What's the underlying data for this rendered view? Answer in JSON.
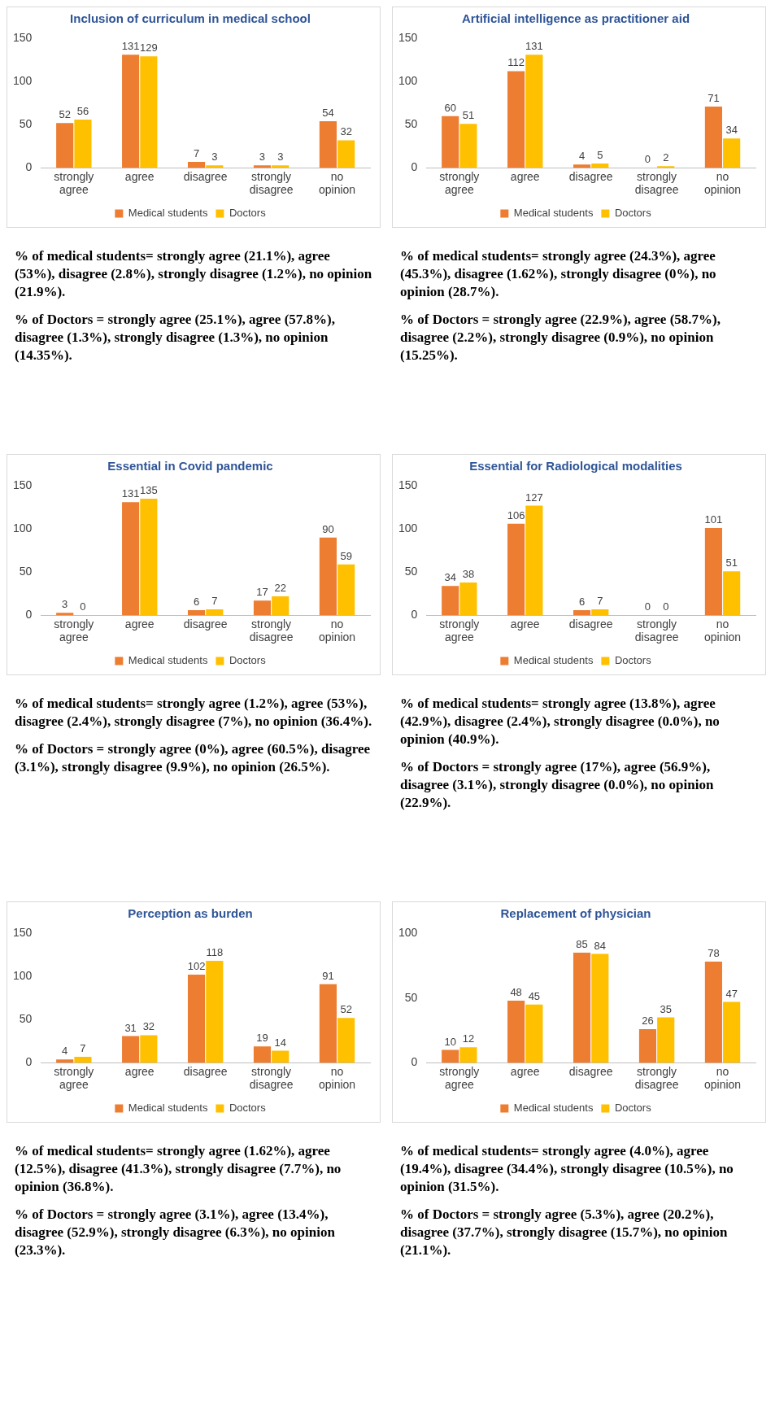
{
  "chart_data": [
    {
      "type": "bar",
      "title": "Inclusion of curriculum in medical school",
      "categories": [
        "strongly agree",
        "agree",
        "disagree",
        "strongly disagree",
        "no opinion"
      ],
      "series": [
        {
          "name": "Medical students",
          "color": "#ed7d31",
          "values": [
            52,
            131,
            7,
            3,
            54
          ]
        },
        {
          "name": "Doctors",
          "color": "#ffc000",
          "values": [
            56,
            129,
            3,
            3,
            32
          ]
        }
      ],
      "ylim": [
        0,
        150
      ],
      "yticks": [
        0,
        50,
        100,
        150
      ],
      "grid": false,
      "legend": "bottom",
      "data_labels": true,
      "annotations": [
        "% of medical students= strongly agree (21.1%), agree (53%), disagree (2.8%), strongly disagree (1.2%), no opinion (21.9%).",
        "% of Doctors = strongly agree (25.1%), agree (57.8%), disagree (1.3%), strongly disagree (1.3%), no opinion (14.35%)."
      ]
    },
    {
      "type": "bar",
      "title": "Artificial intelligence as practitioner aid",
      "categories": [
        "strongly agree",
        "agree",
        "disagree",
        "strongly disagree",
        "no opinion"
      ],
      "series": [
        {
          "name": "Medical students",
          "color": "#ed7d31",
          "values": [
            60,
            112,
            4,
            0,
            71
          ]
        },
        {
          "name": "Doctors",
          "color": "#ffc000",
          "values": [
            51,
            131,
            5,
            2,
            34
          ]
        }
      ],
      "ylim": [
        0,
        150
      ],
      "yticks": [
        0,
        50,
        100,
        150
      ],
      "grid": false,
      "legend": "bottom",
      "data_labels": true,
      "annotations": [
        "% of medical students= strongly agree (24.3%), agree (45.3%), disagree (1.62%), strongly disagree (0%), no opinion (28.7%).",
        "% of Doctors = strongly agree (22.9%), agree (58.7%), disagree (2.2%), strongly disagree (0.9%), no opinion (15.25%)."
      ]
    },
    {
      "type": "bar",
      "title": "Essential in Covid pandemic",
      "categories": [
        "strongly agree",
        "agree",
        "disagree",
        "strongly disagree",
        "no opinion"
      ],
      "series": [
        {
          "name": "Medical students",
          "color": "#ed7d31",
          "values": [
            3,
            131,
            6,
            17,
            90
          ]
        },
        {
          "name": "Doctors",
          "color": "#ffc000",
          "values": [
            0,
            135,
            7,
            22,
            59
          ]
        }
      ],
      "ylim": [
        0,
        150
      ],
      "yticks": [
        0,
        50,
        100,
        150
      ],
      "grid": false,
      "legend": "bottom",
      "data_labels": true,
      "annotations": [
        "% of medical students= strongly agree (1.2%), agree (53%), disagree (2.4%), strongly disagree (7%), no opinion (36.4%).",
        "% of Doctors = strongly agree (0%), agree (60.5%), disagree (3.1%), strongly disagree (9.9%), no opinion (26.5%)."
      ]
    },
    {
      "type": "bar",
      "title": "Essential for Radiological modalities",
      "categories": [
        "strongly agree",
        "agree",
        "disagree",
        "strongly disagree",
        "no opinion"
      ],
      "series": [
        {
          "name": "Medical students",
          "color": "#ed7d31",
          "values": [
            34,
            106,
            6,
            0,
            101
          ]
        },
        {
          "name": "Doctors",
          "color": "#ffc000",
          "values": [
            38,
            127,
            7,
            0,
            51
          ]
        }
      ],
      "ylim": [
        0,
        150
      ],
      "yticks": [
        0,
        50,
        100,
        150
      ],
      "grid": false,
      "legend": "bottom",
      "data_labels": true,
      "annotations": [
        "% of medical students= strongly agree (13.8%), agree (42.9%), disagree (2.4%), strongly disagree (0.0%), no opinion (40.9%).",
        "% of Doctors = strongly agree (17%), agree (56.9%), disagree (3.1%), strongly disagree (0.0%), no opinion (22.9%)."
      ]
    },
    {
      "type": "bar",
      "title": "Perception as burden",
      "categories": [
        "strongly agree",
        "agree",
        "disagree",
        "strongly disagree",
        "no opinion"
      ],
      "series": [
        {
          "name": "Medical students",
          "color": "#ed7d31",
          "values": [
            4,
            31,
            102,
            19,
            91
          ]
        },
        {
          "name": "Doctors",
          "color": "#ffc000",
          "values": [
            7,
            32,
            118,
            14,
            52
          ]
        }
      ],
      "ylim": [
        0,
        150
      ],
      "yticks": [
        0,
        50,
        100,
        150
      ],
      "grid": false,
      "legend": "bottom",
      "data_labels": true,
      "annotations": [
        "% of medical students= strongly agree (1.62%), agree (12.5%), disagree (41.3%), strongly disagree (7.7%), no opinion (36.8%).",
        "% of Doctors = strongly agree (3.1%), agree (13.4%), disagree (52.9%), strongly disagree (6.3%), no opinion (23.3%)."
      ]
    },
    {
      "type": "bar",
      "title": "Replacement of physician",
      "categories": [
        "strongly agree",
        "agree",
        "disagree",
        "strongly disagree",
        "no opinion"
      ],
      "series": [
        {
          "name": "Medical students",
          "color": "#ed7d31",
          "values": [
            10,
            48,
            85,
            26,
            78
          ]
        },
        {
          "name": "Doctors",
          "color": "#ffc000",
          "values": [
            12,
            45,
            84,
            35,
            47
          ]
        }
      ],
      "ylim": [
        0,
        100
      ],
      "yticks": [
        0,
        50,
        100
      ],
      "grid": false,
      "legend": "bottom",
      "data_labels": true,
      "annotations": [
        "% of medical students= strongly agree (4.0%), agree (19.4%), disagree (34.4%), strongly disagree (10.5%), no opinion (31.5%).",
        "% of Doctors = strongly agree (5.3%), agree (20.2%), disagree (37.7%), strongly disagree (15.7%), no opinion (21.1%)."
      ]
    }
  ]
}
